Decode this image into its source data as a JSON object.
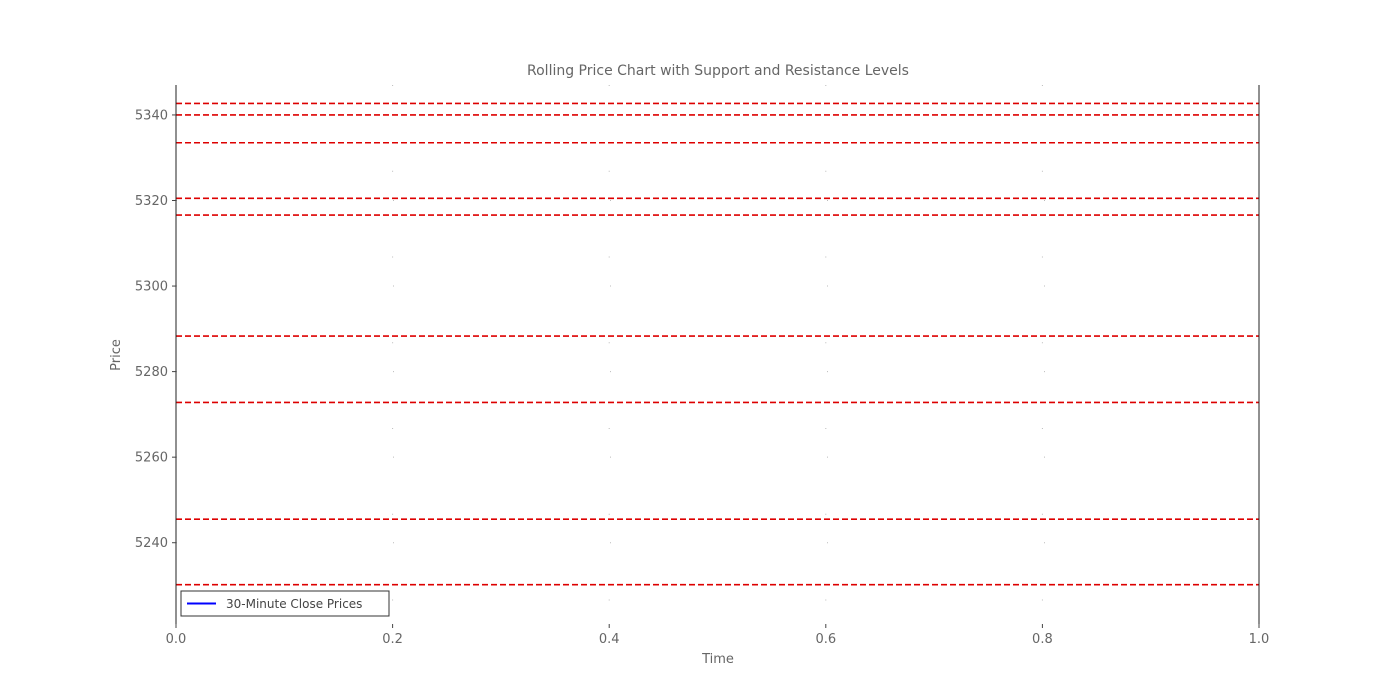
{
  "chart_data": {
    "type": "line",
    "title": "Rolling Price Chart with Support and Resistance Levels",
    "xlabel": "Time",
    "ylabel": "Price",
    "xlim": [
      0.0,
      1.0
    ],
    "ylim": [
      5221,
      5347
    ],
    "x_ticks": [
      "0.0",
      "0.2",
      "0.4",
      "0.6",
      "0.8",
      "1.0"
    ],
    "y_ticks": [
      "5240",
      "5260",
      "5280",
      "5300",
      "5320",
      "5340"
    ],
    "grid": "dotted",
    "series": [
      {
        "name": "30-Minute Close Prices",
        "color": "#0000ff",
        "values": []
      }
    ],
    "levels": {
      "color": "#dd0000",
      "style": "dashed",
      "values": [
        5342.7,
        5340.0,
        5333.5,
        5320.5,
        5316.6,
        5288.3,
        5272.8,
        5245.5,
        5230.2
      ]
    },
    "legend_position": "lower-left"
  }
}
